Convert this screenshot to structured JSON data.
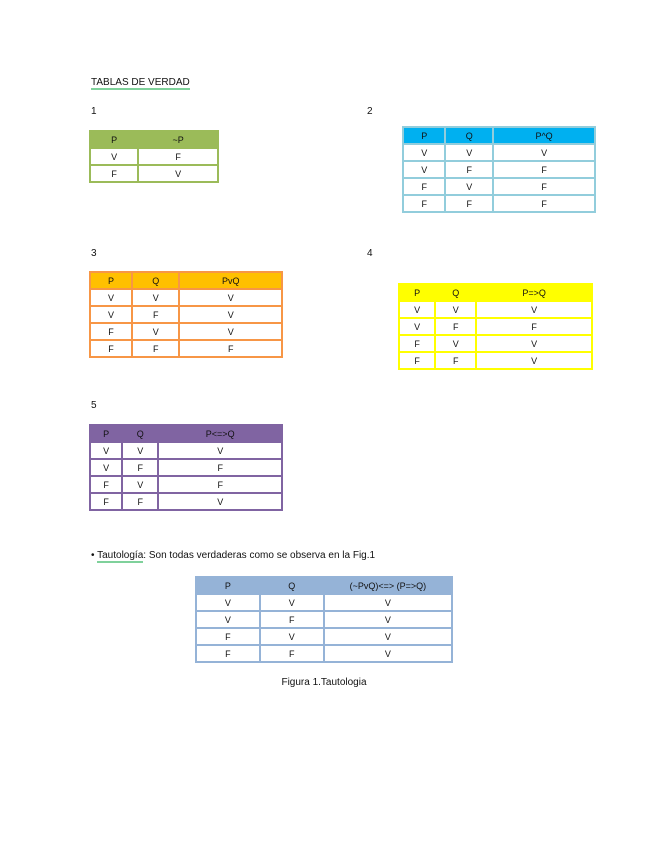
{
  "title": "TABLAS DE VERDAD",
  "tables": [
    {
      "label": "1",
      "header_color": "#9BBB59",
      "border_color": "#9BBB59",
      "headers": [
        "P",
        "~P"
      ],
      "rows": [
        [
          "V",
          "F"
        ],
        [
          "F",
          "V"
        ]
      ]
    },
    {
      "label": "2",
      "header_color": "#00B0F0",
      "border_color": "#92CDDC",
      "headers": [
        "P",
        "Q",
        "P^Q"
      ],
      "rows": [
        [
          "V",
          "V",
          "V"
        ],
        [
          "V",
          "F",
          "F"
        ],
        [
          "F",
          "V",
          "F"
        ],
        [
          "F",
          "F",
          "F"
        ]
      ]
    },
    {
      "label": "3",
      "header_color": "#FFC000",
      "border_color": "#F79646",
      "headers": [
        "P",
        "Q",
        "PvQ"
      ],
      "rows": [
        [
          "V",
          "V",
          "V"
        ],
        [
          "V",
          "F",
          "V"
        ],
        [
          "F",
          "V",
          "V"
        ],
        [
          "F",
          "F",
          "F"
        ]
      ]
    },
    {
      "label": "4",
      "header_color": "#FFFF00",
      "border_color": "#FFFF00",
      "headers": [
        "P",
        "Q",
        "P=>Q"
      ],
      "rows": [
        [
          "V",
          "V",
          "V"
        ],
        [
          "V",
          "F",
          "F"
        ],
        [
          "F",
          "V",
          "V"
        ],
        [
          "F",
          "F",
          "V"
        ]
      ]
    },
    {
      "label": "5",
      "header_color": "#8064A2",
      "border_color": "#8064A2",
      "headers": [
        "P",
        "Q",
        "P<=>Q"
      ],
      "rows": [
        [
          "V",
          "V",
          "V"
        ],
        [
          "V",
          "F",
          "F"
        ],
        [
          "F",
          "V",
          "F"
        ],
        [
          "F",
          "F",
          "V"
        ]
      ]
    },
    {
      "label": "",
      "header_color": "#95B3D7",
      "border_color": "#95B3D7",
      "headers": [
        "P",
        "Q",
        "(~PvQ)<=> (P=>Q)"
      ],
      "rows": [
        [
          "V",
          "V",
          "V"
        ],
        [
          "V",
          "F",
          "V"
        ],
        [
          "F",
          "V",
          "V"
        ],
        [
          "F",
          "F",
          "V"
        ]
      ]
    }
  ],
  "tautology": {
    "bullet": "•",
    "term": "Tautología",
    "text": ": Son todas verdaderas como se observa en la Fig.1"
  },
  "caption": "Figura 1.Tautologia"
}
